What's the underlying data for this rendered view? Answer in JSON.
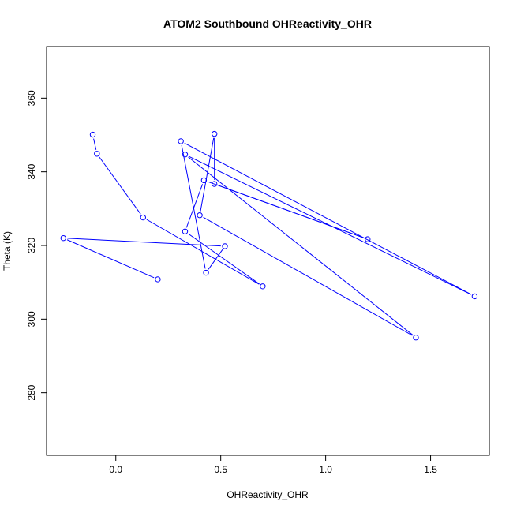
{
  "chart_data": {
    "type": "line",
    "title": "ATOM2 Southbound OHReactivity_OHR",
    "xlabel": "OHReactivity_OHR",
    "ylabel": "Theta (K)",
    "xlim": [
      -0.33,
      1.78
    ],
    "ylim": [
      263,
      374
    ],
    "x_ticks": [
      0.0,
      0.5,
      1.0,
      1.5
    ],
    "x_tick_labels": [
      "0.0",
      "0.5",
      "1.0",
      "1.5"
    ],
    "y_ticks": [
      280,
      300,
      320,
      340,
      360
    ],
    "y_tick_labels": [
      "280",
      "300",
      "320",
      "340",
      "360"
    ],
    "grid": false,
    "series": [
      {
        "color": "#0000ff",
        "marker": "open-circle",
        "points": [
          {
            "x": 0.2,
            "y": 310.8
          },
          {
            "x": -0.25,
            "y": 322.0
          },
          {
            "x": 0.52,
            "y": 319.8
          },
          {
            "x": 0.43,
            "y": 312.6
          },
          {
            "x": 0.31,
            "y": 348.3
          },
          {
            "x": 1.71,
            "y": 306.2
          },
          {
            "x": 0.33,
            "y": 344.7
          },
          {
            "x": 1.43,
            "y": 295.0
          },
          {
            "x": 0.4,
            "y": 328.2
          },
          {
            "x": 0.47,
            "y": 350.3
          },
          {
            "x": 0.47,
            "y": 336.7
          },
          {
            "x": 1.2,
            "y": 321.7
          },
          {
            "x": 0.42,
            "y": 337.7
          },
          {
            "x": 0.33,
            "y": 323.8
          },
          {
            "x": 0.7,
            "y": 308.9
          },
          {
            "x": 0.13,
            "y": 327.6
          },
          {
            "x": -0.09,
            "y": 344.9
          },
          {
            "x": -0.11,
            "y": 350.1
          }
        ]
      }
    ]
  }
}
